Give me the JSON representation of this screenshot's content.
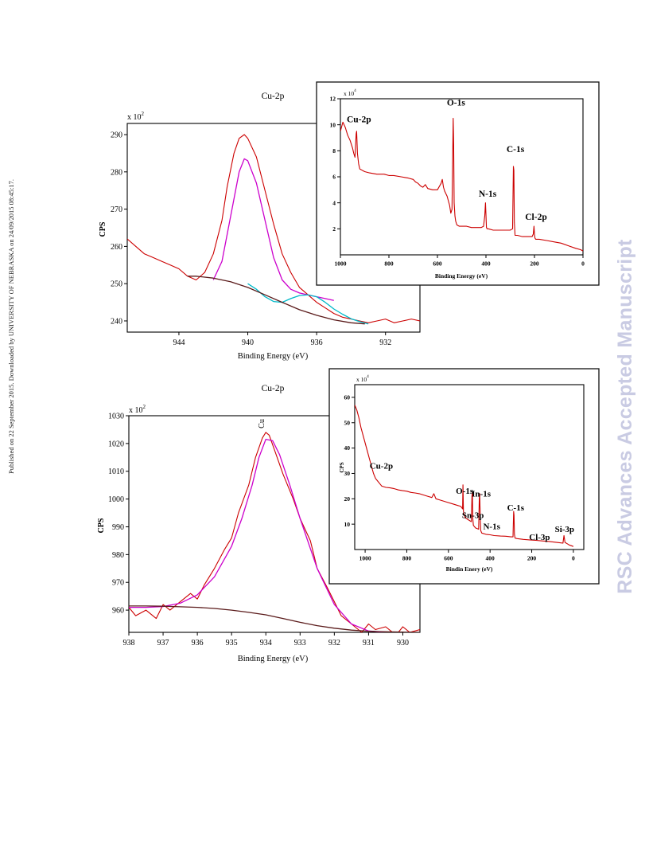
{
  "side_note": "Published on 22 September 2015. Downloaded by UNIVERSITY OF NEBRASKA on 24/09/2015 08:45:17.",
  "watermark": "RSC Advances Accepted Manuscript",
  "colors": {
    "spectrum": "#cc0000",
    "fit_main": "#cc00cc",
    "fit_secondary": "#00b8c8",
    "background": "#5a1a1a",
    "frame": "#000000"
  },
  "chart_data": [
    {
      "type": "line",
      "title": "Cu-2p",
      "xlabel": "Binding Energy (eV)",
      "ylabel": "CPS",
      "y_multiplier": "x 10",
      "y_multiplier_exp": "2",
      "xlim": [
        947,
        930
      ],
      "ylim": [
        237,
        293
      ],
      "x_reversed": true,
      "x_ticks": [
        944,
        940,
        936,
        932
      ],
      "y_ticks": [
        240,
        250,
        260,
        270,
        280,
        290
      ],
      "series": [
        {
          "role": "spectrum",
          "x": [
            947,
            946.5,
            946,
            945.5,
            945,
            944.5,
            944,
            943.5,
            943,
            942.5,
            942,
            941.5,
            941.2,
            940.8,
            940.5,
            940.2,
            940,
            939.5,
            939,
            938.5,
            938,
            937.5,
            937,
            936.5,
            936,
            935.5,
            935,
            934.5,
            934,
            933.5,
            933,
            932.5,
            932,
            931.5,
            931,
            930.5,
            930
          ],
          "y": [
            262,
            260,
            258,
            257,
            256,
            255,
            254,
            252,
            251,
            253,
            258,
            267,
            276,
            285,
            289,
            290,
            289,
            284,
            275,
            266,
            258,
            253,
            249,
            247,
            245,
            243.5,
            242,
            241,
            240.5,
            240,
            239.5,
            240,
            240.5,
            239.5,
            240,
            240.5,
            240
          ]
        },
        {
          "role": "fit_main",
          "x": [
            942,
            941.5,
            941,
            940.5,
            940.2,
            940,
            939.5,
            939,
            938.5,
            938,
            937.5,
            937,
            936.5,
            936,
            935.5,
            935
          ],
          "y": [
            251,
            256,
            268,
            280,
            283.5,
            283,
            277,
            267,
            257,
            251,
            248.5,
            247.5,
            247,
            246.5,
            246,
            245.5
          ]
        },
        {
          "role": "fit_secondary",
          "x": [
            940,
            939.5,
            939,
            938.5,
            938,
            937.5,
            937,
            936.5,
            936,
            935.5,
            935,
            934.5,
            934,
            933.5,
            933
          ],
          "y": [
            250,
            248.5,
            246.5,
            245.2,
            245,
            246,
            246.8,
            247,
            246.5,
            245,
            243.2,
            241.8,
            240.6,
            239.8,
            239.2
          ]
        },
        {
          "role": "background",
          "x": [
            943.5,
            943,
            942,
            941,
            940,
            939,
            938,
            937,
            936,
            935,
            934,
            933.2
          ],
          "y": [
            252,
            252,
            251.5,
            250.5,
            249,
            247,
            245,
            243,
            241.5,
            240.3,
            239.5,
            239.2
          ]
        }
      ]
    },
    {
      "type": "line",
      "title": "",
      "xlabel": "Binding Energy (eV)",
      "ylabel": "",
      "y_multiplier": "x 10",
      "y_multiplier_exp": "4",
      "xlim": [
        1000,
        0
      ],
      "ylim": [
        0,
        12
      ],
      "x_reversed": true,
      "x_ticks": [
        1000,
        800,
        600,
        400,
        200,
        0
      ],
      "y_ticks": [
        2,
        4,
        6,
        8,
        10,
        12
      ],
      "annotations": [
        {
          "text": "Cu-2p",
          "x": 930,
          "y": 10
        },
        {
          "text": "O-1s",
          "x": 530,
          "y": 11.3
        },
        {
          "text": "N-1s",
          "x": 400,
          "y": 4.3
        },
        {
          "text": "C-1s",
          "x": 285,
          "y": 7.7
        },
        {
          "text": "Cl-2p",
          "x": 200,
          "y": 2.5
        }
      ],
      "series": [
        {
          "role": "spectrum",
          "x": [
            1000,
            990,
            980,
            970,
            960,
            950,
            945,
            940,
            935,
            933,
            930,
            925,
            920,
            900,
            880,
            850,
            820,
            800,
            780,
            750,
            720,
            700,
            690,
            680,
            670,
            660,
            650,
            640,
            620,
            600,
            585,
            580,
            575,
            570,
            560,
            550,
            545,
            540,
            535,
            533,
            531,
            528,
            525,
            520,
            510,
            500,
            480,
            460,
            440,
            420,
            410,
            405,
            402,
            400,
            398,
            395,
            390,
            370,
            350,
            330,
            300,
            290,
            287,
            285,
            283,
            280,
            270,
            250,
            230,
            210,
            205,
            202,
            200,
            198,
            195,
            180,
            150,
            120,
            90,
            60,
            30,
            10,
            0
          ],
          "y": [
            9.5,
            10.2,
            9.8,
            9.2,
            8.8,
            8.2,
            7.8,
            7.5,
            9.3,
            9.5,
            7.8,
            7.0,
            6.6,
            6.4,
            6.3,
            6.2,
            6.2,
            6.1,
            6.1,
            6.0,
            5.9,
            5.8,
            5.6,
            5.5,
            5.3,
            5.2,
            5.4,
            5.1,
            5.0,
            5.0,
            5.5,
            5.8,
            5.2,
            4.9,
            4.5,
            3.8,
            3.2,
            3.5,
            10.5,
            8.5,
            4.0,
            3.0,
            2.6,
            2.3,
            2.2,
            2.2,
            2.2,
            2.1,
            2.1,
            2.1,
            2.2,
            3.0,
            4.0,
            3.1,
            2.1,
            2.0,
            2.0,
            1.9,
            1.9,
            1.9,
            1.9,
            2.0,
            6.8,
            6.5,
            2.5,
            1.5,
            1.5,
            1.4,
            1.4,
            1.4,
            1.6,
            2.2,
            1.6,
            1.3,
            1.2,
            1.2,
            1.1,
            1.0,
            0.9,
            0.7,
            0.5,
            0.4,
            0.3
          ]
        }
      ]
    },
    {
      "type": "line",
      "title": "Cu-2p",
      "xlabel": "Binding Energy (eV)",
      "ylabel": "CPS",
      "y_multiplier": "x 10",
      "y_multiplier_exp": "2",
      "peak_label": "Cu",
      "xlim": [
        938,
        929.5
      ],
      "ylim": [
        952,
        1030
      ],
      "x_reversed": true,
      "x_ticks": [
        938,
        937,
        936,
        935,
        934,
        933,
        932,
        931,
        930
      ],
      "y_ticks": [
        960,
        970,
        980,
        990,
        1000,
        1010,
        1020,
        1030
      ],
      "series": [
        {
          "role": "spectrum",
          "x": [
            938,
            937.8,
            937.5,
            937.2,
            937,
            936.8,
            936.5,
            936.2,
            936,
            935.8,
            935.5,
            935.2,
            935,
            934.8,
            934.5,
            934.3,
            934.1,
            934,
            933.9,
            933.7,
            933.5,
            933.2,
            933,
            932.7,
            932.5,
            932.2,
            932,
            931.8,
            931.5,
            931.2,
            931,
            930.8,
            930.5,
            930.2,
            930,
            929.8,
            929.5
          ],
          "y": [
            961,
            958,
            960,
            957,
            962,
            960,
            963,
            966,
            964,
            969,
            975,
            982,
            986,
            995,
            1005,
            1015,
            1022,
            1024,
            1023,
            1016,
            1009,
            1000,
            993,
            985,
            975,
            968,
            963,
            958,
            955,
            952,
            955,
            953,
            954,
            951,
            954,
            952,
            953
          ]
        },
        {
          "role": "fit_main",
          "x": [
            938,
            937.5,
            937,
            936.5,
            936,
            935.5,
            935,
            934.7,
            934.4,
            934.2,
            934,
            933.8,
            933.6,
            933.3,
            933,
            932.5,
            932,
            931.5,
            931,
            930.5
          ],
          "y": [
            961,
            961,
            961.3,
            962.5,
            965.5,
            972,
            983,
            993,
            1005,
            1015,
            1021.5,
            1021,
            1016,
            1005,
            993,
            975,
            962,
            955,
            952.5,
            952
          ]
        },
        {
          "role": "background",
          "x": [
            938,
            937.5,
            937,
            936.5,
            936,
            935.5,
            935,
            934.5,
            934,
            933.5,
            933,
            932.5,
            932,
            931.5,
            931,
            930.5,
            930,
            929.5
          ],
          "y": [
            961.5,
            961.5,
            961.4,
            961.2,
            961,
            960.6,
            960,
            959.2,
            958.3,
            957,
            955.6,
            954.4,
            953.5,
            952.8,
            952.4,
            952.2,
            952.1,
            952
          ]
        }
      ]
    },
    {
      "type": "line",
      "title": "",
      "xlabel": "Bindin Enery (eV)",
      "ylabel": "CPS",
      "y_multiplier": "x 10",
      "y_multiplier_exp": "4",
      "xlim": [
        1050,
        -50
      ],
      "ylim": [
        0,
        65
      ],
      "x_reversed": true,
      "x_ticks": [
        1000,
        800,
        600,
        400,
        200,
        0
      ],
      "y_ticks": [
        10,
        20,
        30,
        40,
        50,
        60
      ],
      "annotations": [
        {
          "text": "Cu-2p",
          "x": 930,
          "y": 31
        },
        {
          "text": "O-1s",
          "x": 530,
          "y": 21
        },
        {
          "text": "In-1s",
          "x": 450,
          "y": 20
        },
        {
          "text": "Sn-3p",
          "x": 490,
          "y": 11.5
        },
        {
          "text": "N-1s",
          "x": 400,
          "y": 7
        },
        {
          "text": "C-1s",
          "x": 285,
          "y": 14.5
        },
        {
          "text": "Cl-3p",
          "x": 170,
          "y": 2.8
        },
        {
          "text": "Si-3p",
          "x": 50,
          "y": 6
        }
      ],
      "series": [
        {
          "role": "spectrum",
          "x": [
            1050,
            1040,
            1030,
            1020,
            1010,
            1000,
            990,
            980,
            970,
            960,
            950,
            940,
            930,
            925,
            920,
            900,
            880,
            860,
            840,
            820,
            800,
            780,
            760,
            740,
            720,
            700,
            680,
            670,
            660,
            640,
            620,
            600,
            580,
            560,
            540,
            532,
            530,
            528,
            520,
            500,
            490,
            487,
            485,
            483,
            480,
            470,
            455,
            452,
            450,
            447,
            445,
            440,
            420,
            400,
            380,
            350,
            320,
            300,
            290,
            287,
            285,
            283,
            280,
            270,
            240,
            210,
            180,
            150,
            120,
            100,
            80,
            60,
            50,
            45,
            40,
            30,
            20,
            10,
            0
          ],
          "y": [
            57,
            55,
            52,
            48,
            45,
            42,
            39,
            36,
            33,
            30,
            28,
            27,
            26,
            25.5,
            25,
            24.5,
            24.3,
            24,
            23.5,
            23.2,
            23,
            22.5,
            22.3,
            22,
            21.5,
            21,
            20.5,
            22,
            20,
            19.5,
            19,
            18.5,
            18,
            17.5,
            17,
            16,
            25.5,
            15,
            12.5,
            11.5,
            11,
            21,
            22.5,
            12,
            9.5,
            8.5,
            8,
            20,
            22,
            12,
            7.5,
            6.5,
            6,
            5.8,
            5.5,
            5.3,
            5.2,
            5,
            5,
            15,
            13.5,
            6,
            4.5,
            4.3,
            4,
            3.8,
            3.6,
            3.4,
            3.2,
            3,
            2.8,
            2.6,
            2.5,
            5.5,
            2.8,
            2.3,
            1.8,
            1.5,
            1.2
          ]
        }
      ]
    }
  ]
}
